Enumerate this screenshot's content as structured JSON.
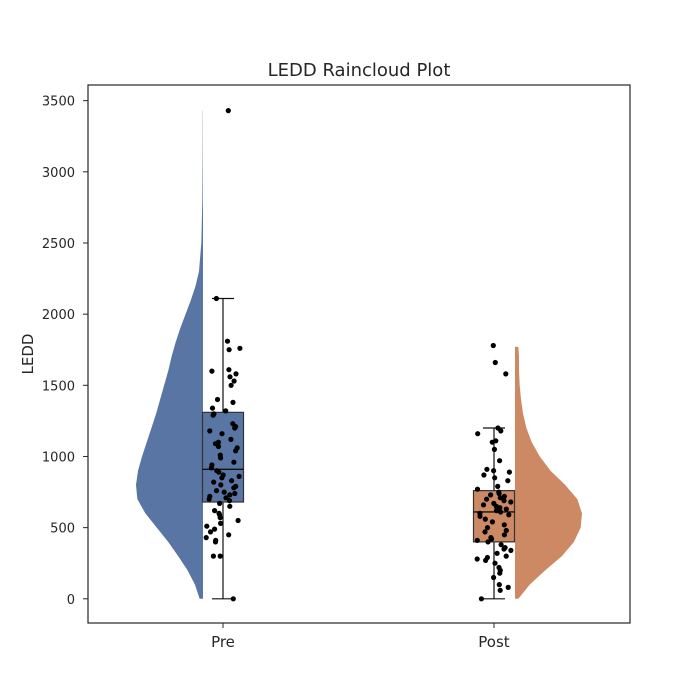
{
  "chart_data": {
    "type": "raincloud",
    "title": "LEDD Raincloud Plot",
    "xlabel": "",
    "ylabel": "LEDD",
    "ylim": [
      -170,
      3610
    ],
    "yticks": [
      0,
      500,
      1000,
      1500,
      2000,
      2500,
      3000,
      3500
    ],
    "grid": false,
    "categories": [
      "Pre",
      "Post"
    ],
    "colors": {
      "Pre": "#5875a4",
      "Post": "#cc8963"
    },
    "series": [
      {
        "category": "Pre",
        "box": {
          "whisker_low": 0,
          "q1": 680,
          "median": 910,
          "q3": 1310,
          "whisker_high": 2110
        },
        "density": [
          [
            0,
            0.05
          ],
          [
            100,
            0.12
          ],
          [
            200,
            0.23
          ],
          [
            300,
            0.37
          ],
          [
            400,
            0.52
          ],
          [
            500,
            0.69
          ],
          [
            600,
            0.86
          ],
          [
            700,
            0.98
          ],
          [
            800,
            1.0
          ],
          [
            900,
            0.97
          ],
          [
            1000,
            0.91
          ],
          [
            1100,
            0.84
          ],
          [
            1200,
            0.77
          ],
          [
            1300,
            0.7
          ],
          [
            1400,
            0.64
          ],
          [
            1500,
            0.58
          ],
          [
            1600,
            0.52
          ],
          [
            1700,
            0.47
          ],
          [
            1800,
            0.41
          ],
          [
            1900,
            0.34
          ],
          [
            2000,
            0.26
          ],
          [
            2100,
            0.18
          ],
          [
            2200,
            0.11
          ],
          [
            2300,
            0.06
          ],
          [
            2500,
            0.025
          ],
          [
            2800,
            0.01
          ],
          [
            3100,
            0.005
          ],
          [
            3430,
            0.003
          ]
        ],
        "points": [
          3430,
          2110,
          1810,
          1760,
          1750,
          1610,
          1600,
          1580,
          1560,
          1530,
          1500,
          1400,
          1380,
          1340,
          1320,
          1300,
          1290,
          1230,
          1210,
          1200,
          1180,
          1160,
          1120,
          1100,
          1090,
          1070,
          1060,
          1040,
          1010,
          990,
          960,
          940,
          920,
          900,
          890,
          870,
          860,
          850,
          830,
          820,
          800,
          790,
          780,
          760,
          750,
          740,
          730,
          720,
          710,
          700,
          690,
          670,
          650,
          620,
          600,
          590,
          570,
          550,
          530,
          510,
          490,
          470,
          450,
          430,
          410,
          400,
          300,
          300,
          0
        ]
      },
      {
        "category": "Post",
        "box": {
          "whisker_low": 0,
          "q1": 400,
          "median": 610,
          "q3": 760,
          "whisker_high": 1200
        },
        "density": [
          [
            0,
            0.05
          ],
          [
            100,
            0.22
          ],
          [
            200,
            0.45
          ],
          [
            300,
            0.7
          ],
          [
            400,
            0.88
          ],
          [
            500,
            0.98
          ],
          [
            600,
            1.0
          ],
          [
            700,
            0.93
          ],
          [
            800,
            0.75
          ],
          [
            900,
            0.53
          ],
          [
            1000,
            0.37
          ],
          [
            1100,
            0.25
          ],
          [
            1200,
            0.17
          ],
          [
            1300,
            0.12
          ],
          [
            1400,
            0.09
          ],
          [
            1500,
            0.07
          ],
          [
            1600,
            0.06
          ],
          [
            1700,
            0.06
          ],
          [
            1770,
            0.05
          ]
        ],
        "points": [
          1780,
          1660,
          1580,
          1200,
          1180,
          1160,
          1110,
          1100,
          1050,
          970,
          910,
          900,
          890,
          870,
          850,
          830,
          790,
          770,
          750,
          740,
          730,
          720,
          710,
          700,
          690,
          680,
          670,
          660,
          650,
          640,
          630,
          620,
          610,
          600,
          590,
          580,
          560,
          540,
          520,
          500,
          480,
          470,
          450,
          430,
          420,
          410,
          400,
          380,
          360,
          350,
          340,
          320,
          300,
          290,
          280,
          270,
          250,
          220,
          200,
          180,
          150,
          100,
          80,
          60,
          0
        ]
      }
    ]
  }
}
